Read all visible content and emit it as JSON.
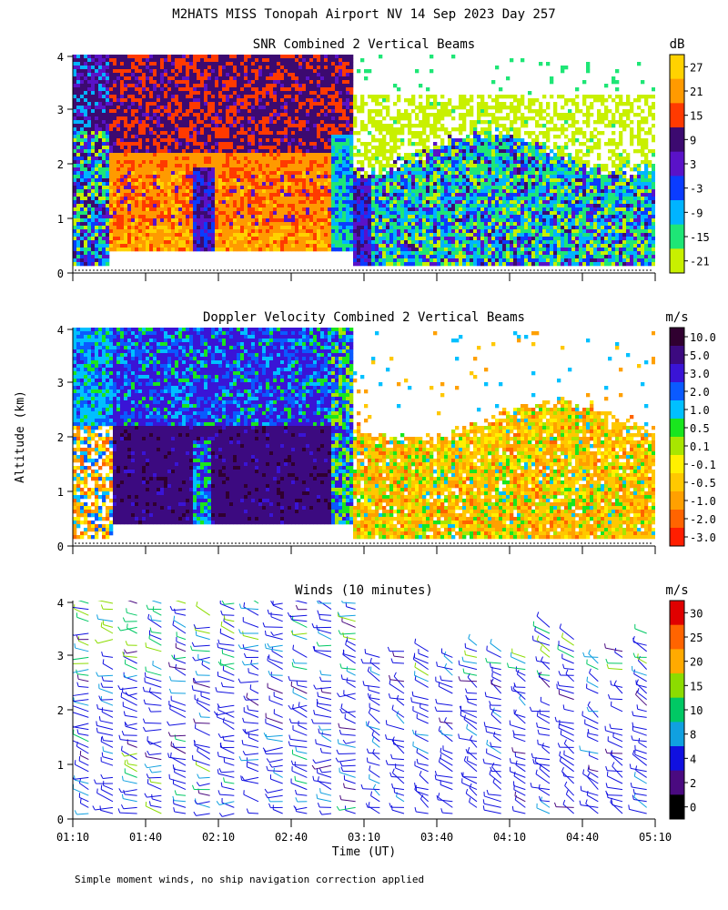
{
  "figure_title": "M2HATS MISS Tonopah Airport NV  14 Sep 2023 Day 257",
  "y_axis_label": "Altitude (km)",
  "x_axis_label": "Time (UT)",
  "footnote": "Simple moment winds, no ship navigation correction applied",
  "chart_data": [
    {
      "type": "heatmap",
      "title": "SNR Combined 2 Vertical Beams",
      "units": "dB",
      "x_range": [
        "01:10",
        "05:10"
      ],
      "yticks": [
        "0",
        "1",
        "2",
        "3",
        "4"
      ],
      "ylim": [
        0,
        4
      ],
      "colorbar": {
        "labels": [
          "27",
          "21",
          "15",
          "9",
          "3",
          "-3",
          "-9",
          "-15",
          "-21"
        ],
        "colors": [
          "#ffd200",
          "#ff9a00",
          "#ff3a00",
          "#3c0a70",
          "#5a12c8",
          "#0a3cff",
          "#00b4ff",
          "#1ee676",
          "#c8f000"
        ]
      },
      "regions": [
        {
          "t": [
            "01:10",
            "01:35"
          ],
          "alt_km": [
            0.1,
            4.0
          ],
          "description": "mixed -15 to 9 dB"
        },
        {
          "t": [
            "01:35",
            "03:05"
          ],
          "alt_km": [
            0.4,
            4.0
          ],
          "description": "high SNR 9 to 27 dB"
        },
        {
          "t": [
            "03:05",
            "05:10"
          ],
          "alt_km": [
            0.1,
            2.6
          ],
          "description": "low SNR -21 to 3 dB"
        }
      ]
    },
    {
      "type": "heatmap",
      "title": "Doppler Velocity Combined 2 Vertical Beams",
      "units": "m/s",
      "x_range": [
        "01:10",
        "05:10"
      ],
      "yticks": [
        "0",
        "1",
        "2",
        "3",
        "4"
      ],
      "ylim": [
        0,
        4
      ],
      "colorbar": {
        "labels": [
          "10.0",
          "5.0",
          "3.0",
          "2.0",
          "1.0",
          "0.5",
          "0.1",
          "-0.1",
          "-0.5",
          "-1.0",
          "-2.0",
          "-3.0"
        ],
        "colors": [
          "#300030",
          "#3c0a80",
          "#3a14d6",
          "#0a5aff",
          "#00c0ff",
          "#19e61e",
          "#a8e600",
          "#fff000",
          "#ffc800",
          "#ffa000",
          "#ff6400",
          "#ff1e00"
        ]
      },
      "regions": [
        {
          "t": [
            "01:10",
            "03:05"
          ],
          "alt_km": [
            2.2,
            4.0
          ],
          "description": "downward 1.0 to 5.0 m/s"
        },
        {
          "t": [
            "01:35",
            "03:00"
          ],
          "alt_km": [
            0.4,
            2.0
          ],
          "description": "strong downward 3.0 to 10.0 m/s"
        },
        {
          "t": [
            "03:05",
            "05:10"
          ],
          "alt_km": [
            0.1,
            2.7
          ],
          "description": "weak upward -0.1 to -1.0 m/s"
        }
      ]
    },
    {
      "type": "scatter",
      "title": "Winds (10 minutes)",
      "units": "m/s",
      "x_range": [
        "01:10",
        "05:10"
      ],
      "yticks": [
        "0",
        "1",
        "2",
        "3",
        "4"
      ],
      "ylim": [
        0,
        4
      ],
      "colorbar": {
        "labels": [
          "30",
          "25",
          "20",
          "15",
          "10",
          "8",
          "4",
          "2",
          "0"
        ],
        "colors": [
          "#e00000",
          "#ff6400",
          "#ffaa00",
          "#8cdc00",
          "#00c864",
          "#10a0e0",
          "#1010e0",
          "#4a0a80",
          "#000000"
        ]
      }
    }
  ],
  "xticks": [
    "01:10",
    "01:40",
    "02:10",
    "02:40",
    "03:10",
    "03:40",
    "04:10",
    "04:40",
    "05:10"
  ]
}
